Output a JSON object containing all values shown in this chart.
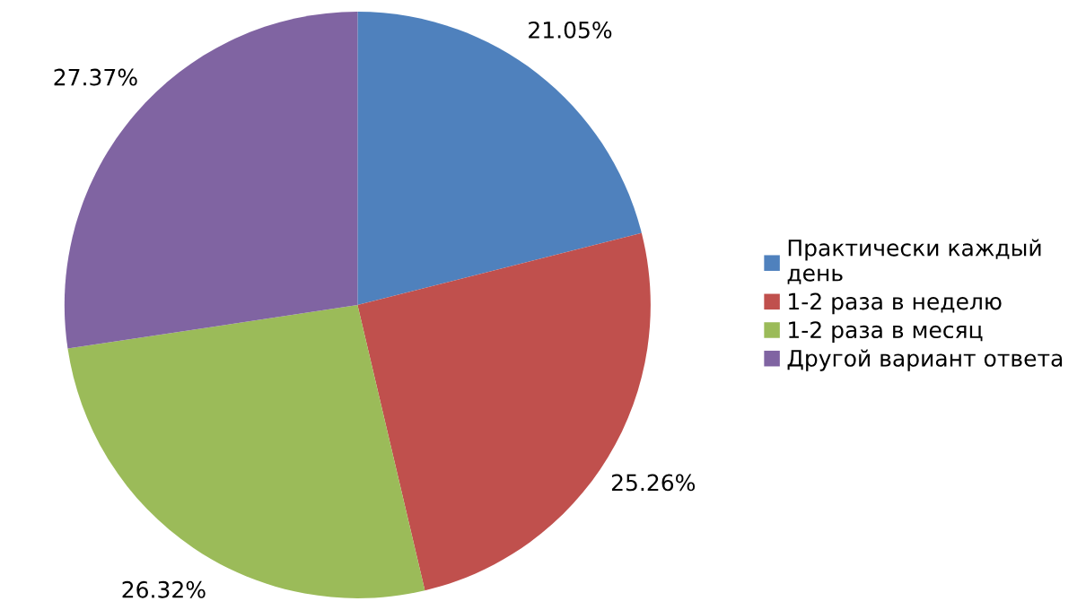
{
  "chart_data": {
    "type": "pie",
    "categories": [
      "Практически каждый\nдень",
      "1-2 раза в неделю",
      "1-2 раза в месяц",
      "Другой вариант ответа"
    ],
    "values": [
      21.05,
      25.26,
      26.32,
      27.37
    ],
    "value_labels": [
      "21.05%",
      "25.26%",
      "26.32%",
      "27.37%"
    ],
    "colors": [
      "#4f81bd",
      "#c0504d",
      "#9bbb59",
      "#8064a2"
    ],
    "legend": "right"
  }
}
